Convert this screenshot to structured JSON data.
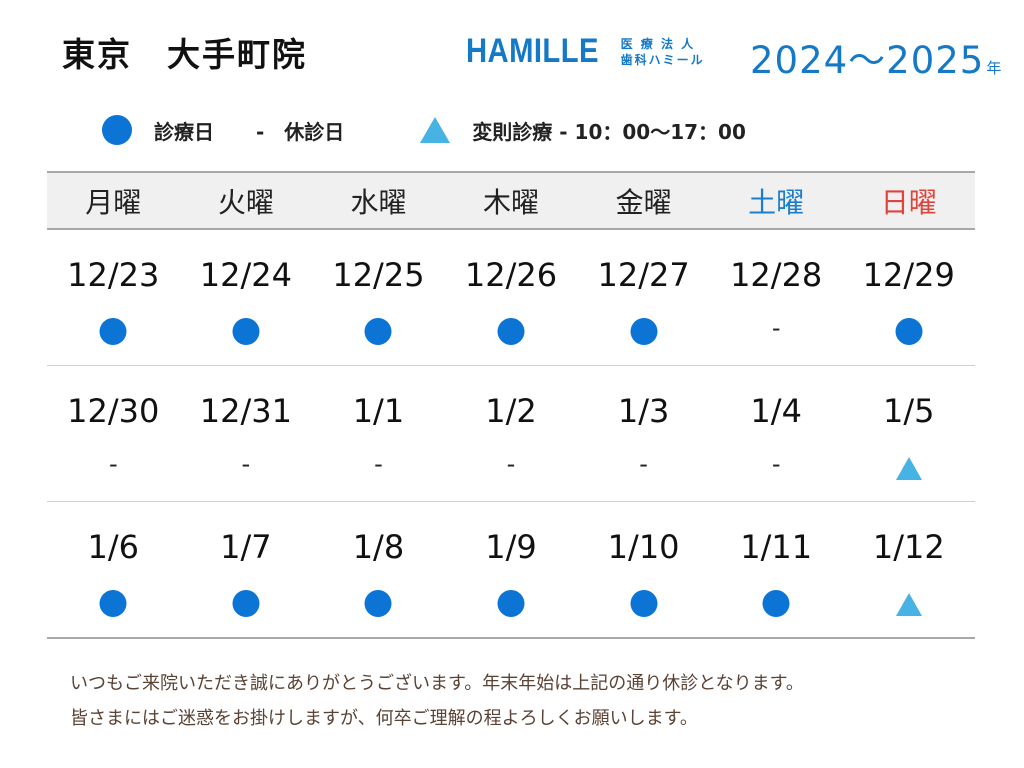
{
  "header": {
    "clinic_name": "東京　大手町院",
    "brand_name": "HAMILLE",
    "brand_sub_line1": "医 療 法 人",
    "brand_sub_line2": "歯科ハミール",
    "years_text": "2024～2025",
    "years_suffix": "年"
  },
  "legend": {
    "open_label": "診療日",
    "closed_label": "-　休診日",
    "special_label": "変則診療 - 10：00～17：00",
    "colors": {
      "open": "#0b74d4",
      "special": "#47b3e4"
    }
  },
  "calendar": {
    "days": [
      "月曜",
      "火曜",
      "水曜",
      "木曜",
      "金曜",
      "土曜",
      "日曜"
    ],
    "weeks": [
      [
        {
          "date": "12/23",
          "status": "open"
        },
        {
          "date": "12/24",
          "status": "open"
        },
        {
          "date": "12/25",
          "status": "open"
        },
        {
          "date": "12/26",
          "status": "open"
        },
        {
          "date": "12/27",
          "status": "open"
        },
        {
          "date": "12/28",
          "status": "closed"
        },
        {
          "date": "12/29",
          "status": "open"
        }
      ],
      [
        {
          "date": "12/30",
          "status": "closed"
        },
        {
          "date": "12/31",
          "status": "closed"
        },
        {
          "date": "1/1",
          "status": "closed"
        },
        {
          "date": "1/2",
          "status": "closed"
        },
        {
          "date": "1/3",
          "status": "closed"
        },
        {
          "date": "1/4",
          "status": "closed"
        },
        {
          "date": "1/5",
          "status": "special"
        }
      ],
      [
        {
          "date": "1/6",
          "status": "open"
        },
        {
          "date": "1/7",
          "status": "open"
        },
        {
          "date": "1/8",
          "status": "open"
        },
        {
          "date": "1/9",
          "status": "open"
        },
        {
          "date": "1/10",
          "status": "open"
        },
        {
          "date": "1/11",
          "status": "open"
        },
        {
          "date": "1/12",
          "status": "special"
        }
      ]
    ],
    "closed_symbol": "-"
  },
  "notice": {
    "line1": "いつもご来院いただき誠にありがとうございます。年末年始は上記の通り休診となります。",
    "line2": "皆さまにはご迷惑をお掛けしますが、何卒ご理解の程よろしくお願いします。"
  }
}
